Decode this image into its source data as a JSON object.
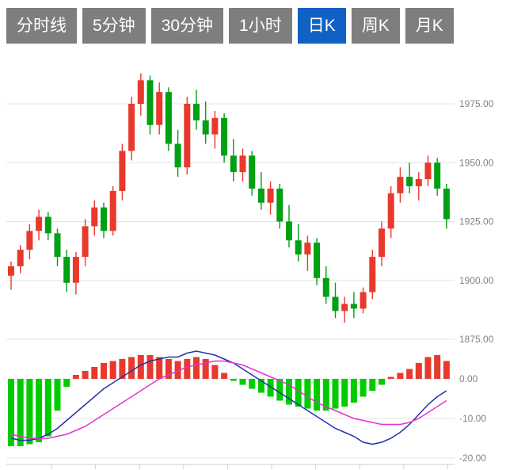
{
  "toolbar": {
    "buttons": [
      {
        "name": "timeline",
        "label": "分时线",
        "active": false
      },
      {
        "name": "5min",
        "label": "5分钟",
        "active": false
      },
      {
        "name": "30min",
        "label": "30分钟",
        "active": false
      },
      {
        "name": "1hour",
        "label": "1小时",
        "active": false
      },
      {
        "name": "daily-k",
        "label": "日K",
        "active": true
      },
      {
        "name": "weekly-k",
        "label": "周K",
        "active": false
      },
      {
        "name": "monthly-k",
        "label": "月K",
        "active": false
      }
    ],
    "active_color": "#1161c4",
    "inactive_color": "#7e7e7e"
  },
  "chart_data": {
    "type": "candlestick",
    "title": "",
    "description": "Daily K-line chart with MACD indicator panel; red = up candle, green = down candle",
    "legend_position": "none",
    "grid": true,
    "price_axis": {
      "side": "right",
      "range": [
        1875,
        1990
      ],
      "ticks": [
        {
          "value": 1975,
          "label": "1975.00"
        },
        {
          "value": 1950,
          "label": "1950.00"
        },
        {
          "value": 1925,
          "label": "1925.00"
        },
        {
          "value": 1900,
          "label": "1900.00"
        },
        {
          "value": 1875,
          "label": "1875.00"
        }
      ]
    },
    "macd_axis": {
      "side": "right",
      "range": [
        -20,
        8
      ],
      "ticks": [
        {
          "value": 0,
          "label": "0.00"
        },
        {
          "value": -10,
          "label": "-10.00"
        },
        {
          "value": -20,
          "label": "-20.00"
        }
      ]
    },
    "candles": [
      [
        1902,
        1908,
        1896,
        1906
      ],
      [
        1906,
        1915,
        1903,
        1913
      ],
      [
        1913,
        1924,
        1909,
        1921
      ],
      [
        1921,
        1930,
        1917,
        1927
      ],
      [
        1927,
        1929,
        1917,
        1920
      ],
      [
        1920,
        1922,
        1906,
        1910
      ],
      [
        1910,
        1913,
        1895,
        1899
      ],
      [
        1899,
        1912,
        1894,
        1910
      ],
      [
        1910,
        1926,
        1906,
        1923
      ],
      [
        1923,
        1934,
        1919,
        1931
      ],
      [
        1931,
        1933,
        1918,
        1921
      ],
      [
        1921,
        1940,
        1919,
        1938
      ],
      [
        1938,
        1958,
        1934,
        1955
      ],
      [
        1955,
        1978,
        1951,
        1975
      ],
      [
        1975,
        1988,
        1970,
        1985
      ],
      [
        1985,
        1987,
        1962,
        1966
      ],
      [
        1966,
        1984,
        1962,
        1980
      ],
      [
        1980,
        1982,
        1955,
        1958
      ],
      [
        1958,
        1964,
        1944,
        1948
      ],
      [
        1948,
        1978,
        1945,
        1975
      ],
      [
        1975,
        1981,
        1964,
        1968
      ],
      [
        1968,
        1976,
        1958,
        1962
      ],
      [
        1962,
        1972,
        1956,
        1969
      ],
      [
        1969,
        1971,
        1950,
        1953
      ],
      [
        1953,
        1960,
        1942,
        1946
      ],
      [
        1946,
        1956,
        1942,
        1953
      ],
      [
        1953,
        1955,
        1936,
        1939
      ],
      [
        1939,
        1946,
        1930,
        1933
      ],
      [
        1933,
        1942,
        1928,
        1939
      ],
      [
        1939,
        1941,
        1922,
        1925
      ],
      [
        1925,
        1932,
        1914,
        1917
      ],
      [
        1917,
        1924,
        1908,
        1911
      ],
      [
        1911,
        1919,
        1904,
        1916
      ],
      [
        1916,
        1918,
        1898,
        1901
      ],
      [
        1901,
        1906,
        1890,
        1893
      ],
      [
        1893,
        1899,
        1884,
        1887
      ],
      [
        1887,
        1893,
        1882,
        1890
      ],
      [
        1890,
        1895,
        1884,
        1888
      ],
      [
        1888,
        1897,
        1886,
        1895
      ],
      [
        1895,
        1913,
        1892,
        1910
      ],
      [
        1910,
        1925,
        1906,
        1922
      ],
      [
        1922,
        1940,
        1918,
        1937
      ],
      [
        1937,
        1948,
        1933,
        1944
      ],
      [
        1944,
        1950,
        1937,
        1940
      ],
      [
        1940,
        1946,
        1934,
        1943
      ],
      [
        1943,
        1953,
        1940,
        1950
      ],
      [
        1950,
        1952,
        1936,
        1939
      ],
      [
        1939,
        1941,
        1922,
        1926
      ]
    ],
    "macd": {
      "histogram": [
        -17,
        -17,
        -16.5,
        -16,
        -14.5,
        -8,
        -2,
        1,
        2,
        3,
        4,
        4.5,
        5,
        5.5,
        6,
        6,
        5.5,
        5,
        4.5,
        5,
        5.5,
        5,
        3.5,
        1.5,
        -0.5,
        -1.5,
        -2.5,
        -3.5,
        -4.5,
        -5.5,
        -6.5,
        -7,
        -7.5,
        -8,
        -8,
        -7.5,
        -7,
        -6,
        -4.5,
        -3,
        -1.5,
        0.5,
        1.5,
        2.5,
        4,
        5.5,
        6,
        4.5
      ],
      "dif": [
        -15,
        -15.5,
        -15.5,
        -15,
        -14,
        -12.5,
        -10.5,
        -8.5,
        -6.5,
        -4.5,
        -2.5,
        -1,
        0.5,
        2,
        3.5,
        4.5,
        5,
        5.5,
        5.5,
        6.5,
        7,
        6.5,
        6,
        5,
        4,
        2.5,
        1,
        -0.5,
        -2,
        -3.5,
        -5,
        -6.5,
        -8,
        -9.5,
        -11,
        -12.5,
        -13.5,
        -14.5,
        -16,
        -16.5,
        -16,
        -15,
        -13.5,
        -11.5,
        -9,
        -6.5,
        -4.5,
        -3
      ],
      "dea": [
        -14,
        -14.5,
        -15,
        -15,
        -15,
        -14.5,
        -14,
        -13,
        -12,
        -10.5,
        -9,
        -7.5,
        -6,
        -4.5,
        -3,
        -1.5,
        0,
        1,
        2,
        3,
        3.5,
        4,
        4.5,
        4.5,
        4,
        3.5,
        2.5,
        1.5,
        0.5,
        -0.5,
        -1.5,
        -3,
        -4.5,
        -6,
        -7,
        -8,
        -9,
        -10,
        -10.5,
        -11,
        -11.5,
        -11.5,
        -11.5,
        -11,
        -10,
        -8.5,
        -7,
        -5.5
      ]
    },
    "colors": {
      "up": "#e8392c",
      "down": "#00a013",
      "hist_up": "#e8392c",
      "hist_down": "#00cc00",
      "dif_line": "#2233aa",
      "dea_line": "#e234d2",
      "grid": "#e4e4e4",
      "axis_line": "#cfcfcf",
      "axis_text": "#828282"
    },
    "candle_color_convention": "red = up, green = down"
  }
}
